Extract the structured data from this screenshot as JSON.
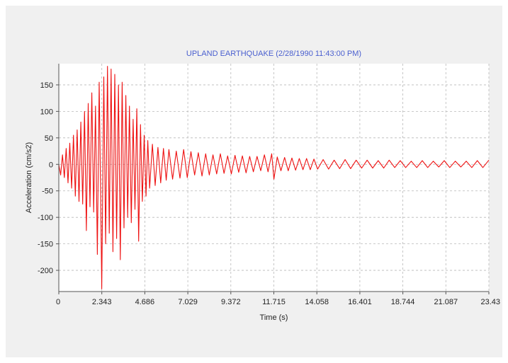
{
  "colors": {
    "background": "#f0f0f0",
    "plot_background": "#ffffff",
    "title": "#4a5fcf",
    "series": "#ee1111",
    "grid": "#b8b8b8",
    "axis": "#555555"
  },
  "chart_data": {
    "type": "line",
    "title": "UPLAND EARTHQUAKE (2/28/1990 11:43:00 PM)",
    "xlabel": "Time (s)",
    "ylabel": "Acceleration (cm/s2)",
    "xlim": [
      0,
      23.43
    ],
    "ylim": [
      -240,
      190
    ],
    "grid": true,
    "legend": "none",
    "x_ticks": [
      0,
      2.343,
      4.686,
      7.029,
      9.372,
      11.715,
      14.058,
      16.401,
      18.744,
      21.087,
      23.43
    ],
    "x_tick_labels": [
      "0",
      "2.343",
      "4.686",
      "7.029",
      "9.372",
      "11.715",
      "14.058",
      "16.401",
      "18.744",
      "21.087",
      "23.43"
    ],
    "y_ticks": [
      150,
      100,
      50,
      0,
      -50,
      -100,
      -150,
      -200
    ],
    "y_tick_labels": [
      "150",
      "100",
      "50",
      "0",
      "-50",
      "-100",
      "-150",
      "-200"
    ],
    "series": [
      {
        "points": [
          [
            0,
            0
          ],
          [
            0.1,
            -20
          ],
          [
            0.2,
            18
          ],
          [
            0.3,
            -25
          ],
          [
            0.4,
            30
          ],
          [
            0.5,
            -35
          ],
          [
            0.6,
            40
          ],
          [
            0.7,
            -45
          ],
          [
            0.8,
            55
          ],
          [
            0.9,
            -60
          ],
          [
            1.0,
            65
          ],
          [
            1.1,
            -70
          ],
          [
            1.2,
            80
          ],
          [
            1.3,
            -75
          ],
          [
            1.4,
            100
          ],
          [
            1.5,
            -125
          ],
          [
            1.6,
            115
          ],
          [
            1.7,
            -80
          ],
          [
            1.8,
            135
          ],
          [
            1.9,
            -90
          ],
          [
            2.0,
            110
          ],
          [
            2.1,
            -170
          ],
          [
            2.2,
            155
          ],
          [
            2.3,
            -120
          ],
          [
            2.34,
            -235
          ],
          [
            2.45,
            165
          ],
          [
            2.55,
            -150
          ],
          [
            2.65,
            185
          ],
          [
            2.75,
            -130
          ],
          [
            2.85,
            180
          ],
          [
            2.95,
            -165
          ],
          [
            3.05,
            170
          ],
          [
            3.15,
            -140
          ],
          [
            3.25,
            150
          ],
          [
            3.35,
            -180
          ],
          [
            3.45,
            155
          ],
          [
            3.55,
            -120
          ],
          [
            3.65,
            130
          ],
          [
            3.75,
            -100
          ],
          [
            3.85,
            110
          ],
          [
            3.95,
            -110
          ],
          [
            4.05,
            85
          ],
          [
            4.15,
            -85
          ],
          [
            4.25,
            105
          ],
          [
            4.35,
            -145
          ],
          [
            4.45,
            75
          ],
          [
            4.55,
            -70
          ],
          [
            4.65,
            55
          ],
          [
            4.75,
            -60
          ],
          [
            4.85,
            45
          ],
          [
            4.95,
            -45
          ],
          [
            5.1,
            38
          ],
          [
            5.25,
            -40
          ],
          [
            5.4,
            32
          ],
          [
            5.55,
            -35
          ],
          [
            5.7,
            30
          ],
          [
            5.85,
            -30
          ],
          [
            6.0,
            28
          ],
          [
            6.2,
            -28
          ],
          [
            6.4,
            25
          ],
          [
            6.6,
            -26
          ],
          [
            6.8,
            28
          ],
          [
            7.0,
            -25
          ],
          [
            7.2,
            24
          ],
          [
            7.4,
            -20
          ],
          [
            7.6,
            22
          ],
          [
            7.8,
            -22
          ],
          [
            8.0,
            20
          ],
          [
            8.2,
            -20
          ],
          [
            8.4,
            18
          ],
          [
            8.6,
            -18
          ],
          [
            8.8,
            20
          ],
          [
            9.0,
            -17
          ],
          [
            9.2,
            16
          ],
          [
            9.4,
            -18
          ],
          [
            9.6,
            17
          ],
          [
            9.8,
            -15
          ],
          [
            10.0,
            16
          ],
          [
            10.2,
            -16
          ],
          [
            10.4,
            15
          ],
          [
            10.6,
            -14
          ],
          [
            10.8,
            15
          ],
          [
            11.0,
            -12
          ],
          [
            11.2,
            18
          ],
          [
            11.4,
            -14
          ],
          [
            11.6,
            20
          ],
          [
            11.72,
            -28
          ],
          [
            11.9,
            14
          ],
          [
            12.1,
            -12
          ],
          [
            12.3,
            13
          ],
          [
            12.5,
            -12
          ],
          [
            12.7,
            12
          ],
          [
            12.9,
            -11
          ],
          [
            13.1,
            11
          ],
          [
            13.3,
            -10
          ],
          [
            13.5,
            11
          ],
          [
            13.7,
            -10
          ],
          [
            13.9,
            10
          ],
          [
            14.1,
            -9
          ],
          [
            14.4,
            9
          ],
          [
            14.7,
            -9
          ],
          [
            15.0,
            8
          ],
          [
            15.3,
            -8
          ],
          [
            15.6,
            9
          ],
          [
            15.9,
            -8
          ],
          [
            16.2,
            8
          ],
          [
            16.5,
            -7
          ],
          [
            16.8,
            8
          ],
          [
            17.1,
            -7
          ],
          [
            17.4,
            7
          ],
          [
            17.7,
            -7
          ],
          [
            18.0,
            8
          ],
          [
            18.3,
            -6
          ],
          [
            18.6,
            7
          ],
          [
            18.9,
            -6
          ],
          [
            19.2,
            6
          ],
          [
            19.5,
            -6
          ],
          [
            19.8,
            7
          ],
          [
            20.1,
            -6
          ],
          [
            20.4,
            6
          ],
          [
            20.7,
            -5
          ],
          [
            21.0,
            7
          ],
          [
            21.3,
            -6
          ],
          [
            21.6,
            6
          ],
          [
            21.9,
            -5
          ],
          [
            22.2,
            6
          ],
          [
            22.5,
            -6
          ],
          [
            22.8,
            7
          ],
          [
            23.1,
            -6
          ],
          [
            23.43,
            8
          ]
        ]
      }
    ]
  }
}
